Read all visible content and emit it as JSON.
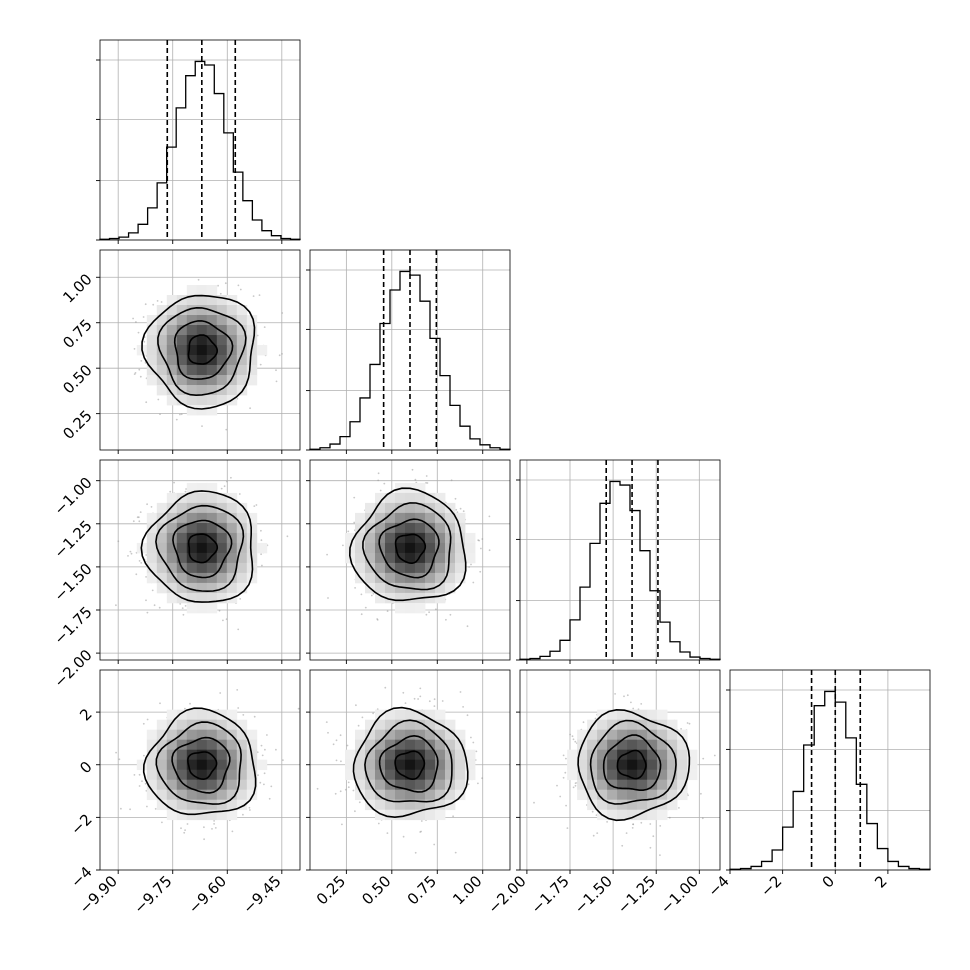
{
  "chart_data": {
    "type": "corner",
    "colors": {
      "line": "#000000",
      "grid": "#b0b0b0",
      "scatter": "#9a9a9a"
    },
    "parameters": [
      {
        "ticks": [
          -9.9,
          -9.75,
          -9.6,
          -9.45
        ],
        "tick_labels": [
          "−9.90",
          "−9.75",
          "−9.60",
          "−9.45"
        ],
        "range": [
          -9.95,
          -9.4
        ],
        "median": -9.67,
        "q16": -9.765,
        "q84": -9.578,
        "sigma": 0.07,
        "hist_edges": [
          -9.95,
          -9.4
        ],
        "hist_counts": [
          1,
          2,
          4,
          10,
          22,
          45,
          80,
          130,
          185,
          230,
          250,
          245,
          205,
          150,
          95,
          55,
          28,
          13,
          6,
          2,
          1
        ]
      },
      {
        "ticks": [
          0.25,
          0.5,
          0.75,
          1.0
        ],
        "tick_labels": [
          "0.25",
          "0.50",
          "0.75",
          "1.00"
        ],
        "range": [
          0.05,
          1.15
        ],
        "median": 0.6,
        "q16": 0.455,
        "q84": 0.745,
        "sigma": 0.145,
        "hist_edges": [
          0.05,
          1.15
        ],
        "hist_counts": [
          1,
          3,
          8,
          18,
          38,
          70,
          115,
          170,
          215,
          240,
          235,
          200,
          150,
          100,
          60,
          32,
          15,
          7,
          3,
          1
        ]
      },
      {
        "ticks": [
          -2.0,
          -1.75,
          -1.5,
          -1.25,
          -1.0
        ],
        "tick_labels": [
          "−2.00",
          "−1.75",
          "−1.50",
          "−1.25",
          "−1.00"
        ],
        "range": [
          -2.04,
          -0.88
        ],
        "median": -1.39,
        "q16": -1.54,
        "q84": -1.24,
        "sigma": 0.15,
        "hist_edges": [
          -2.04,
          -0.88
        ],
        "hist_counts": [
          1,
          2,
          5,
          12,
          27,
          55,
          100,
          160,
          215,
          245,
          240,
          205,
          150,
          95,
          52,
          25,
          11,
          4,
          2,
          1
        ]
      },
      {
        "ticks": [
          -4,
          -2,
          0,
          2
        ],
        "tick_labels": [
          "−4",
          "−2",
          "0",
          "2"
        ],
        "range": [
          -4.0,
          3.6
        ],
        "median": 0.0,
        "q16": -0.9,
        "q84": 0.95,
        "sigma": 0.93,
        "hist_edges": [
          -4.0,
          3.6
        ],
        "hist_counts": [
          1,
          2,
          5,
          12,
          28,
          60,
          110,
          175,
          230,
          250,
          235,
          185,
          120,
          65,
          30,
          12,
          5,
          2,
          1
        ]
      }
    ]
  }
}
